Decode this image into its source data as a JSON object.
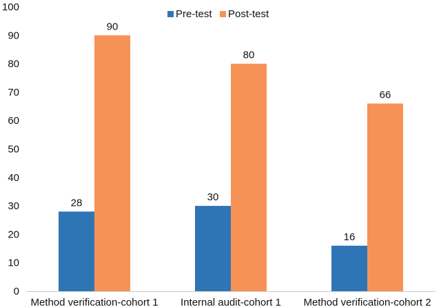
{
  "chart_data": {
    "type": "bar",
    "title": "",
    "xlabel": "",
    "ylabel": "",
    "ylim": [
      0,
      100
    ],
    "yticks": [
      0,
      10,
      20,
      30,
      40,
      50,
      60,
      70,
      80,
      90,
      100
    ],
    "grid": false,
    "legend_position": "top",
    "categories": [
      "Method verification-cohort 1",
      "Internal audit-cohort 1",
      "Method verification-cohort 2"
    ],
    "series": [
      {
        "name": "Pre-test",
        "color": "#2e75b6",
        "values": [
          28,
          30,
          16
        ]
      },
      {
        "name": "Post-test",
        "color": "#f79256",
        "values": [
          90,
          80,
          66
        ]
      }
    ]
  }
}
